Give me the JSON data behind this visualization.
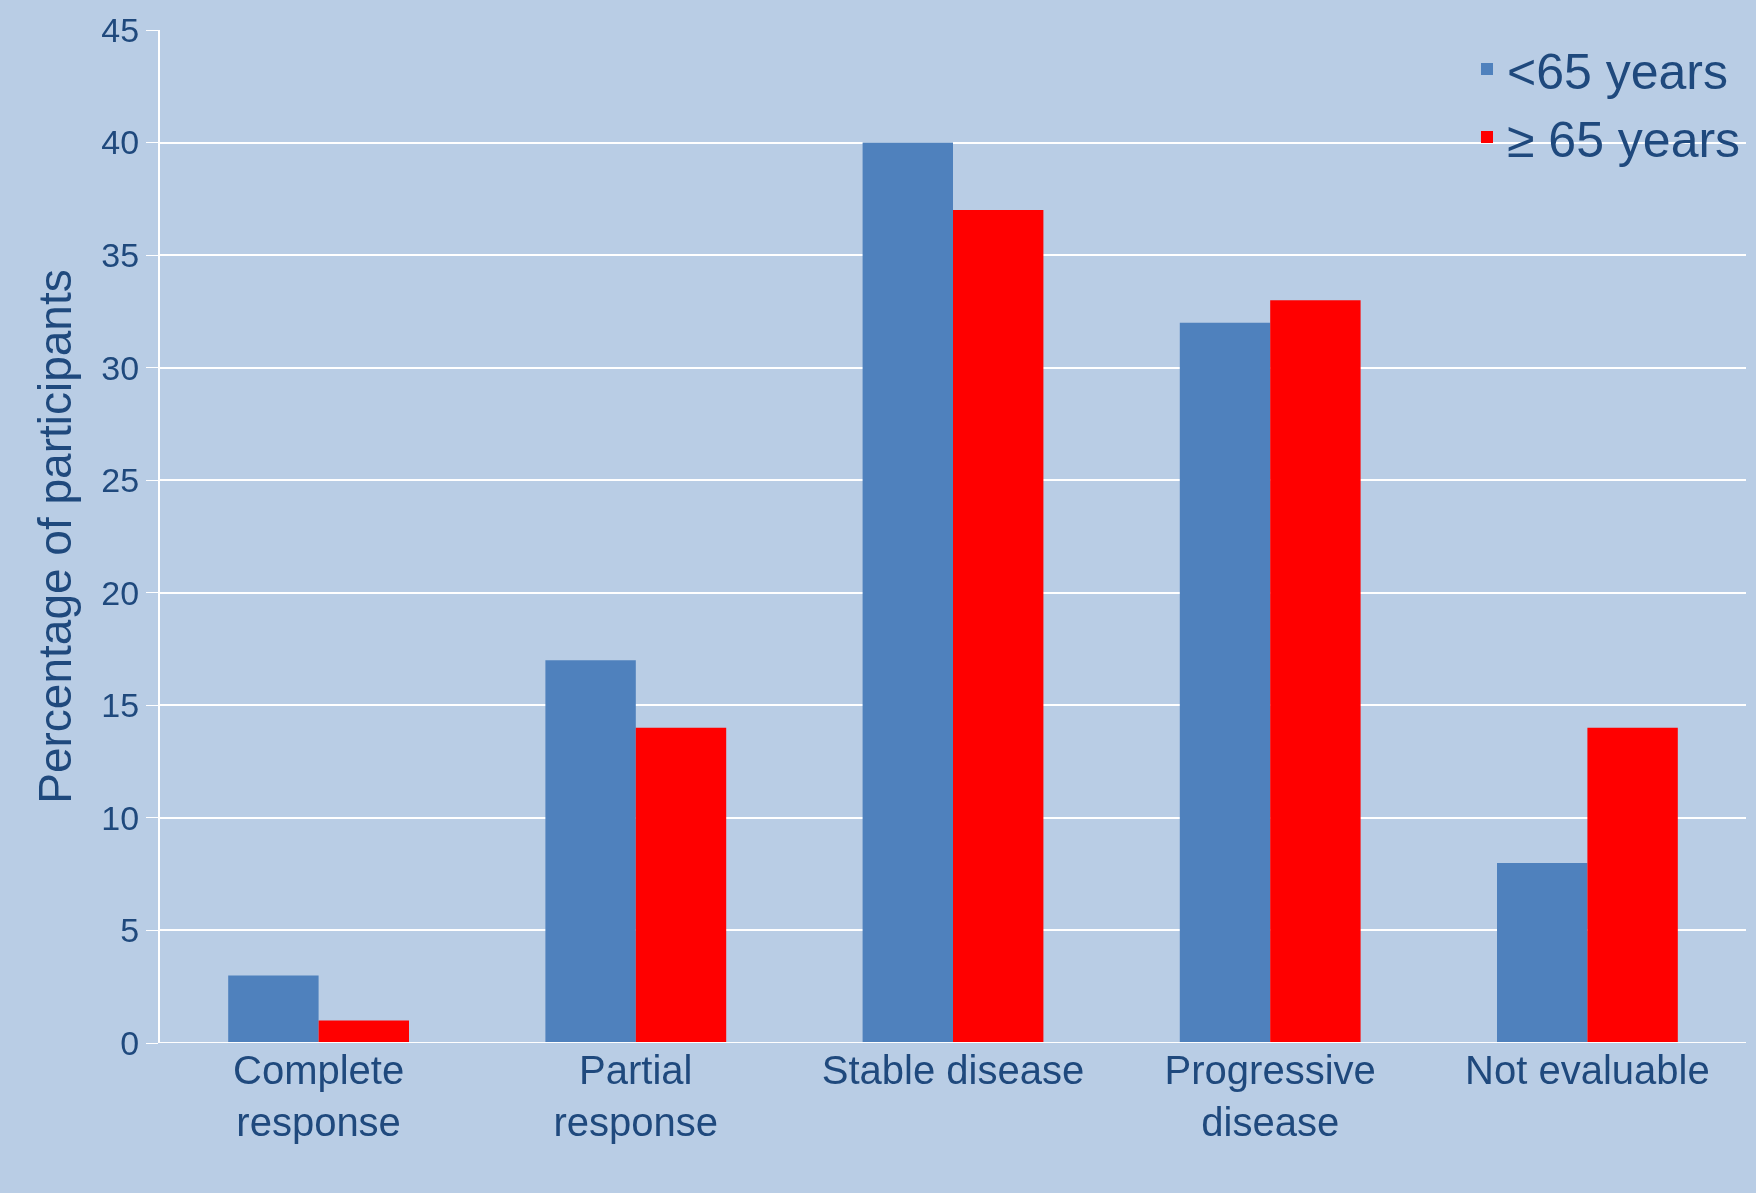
{
  "chart_data": {
    "type": "bar",
    "ylabel": "Percentage of participants",
    "categories": [
      "Complete\nresponse",
      "Partial\nresponse",
      "Stable disease",
      "Progressive\ndisease",
      "Not evaluable"
    ],
    "series": [
      {
        "name": "<65 years",
        "color": "#4f81bd",
        "values": [
          3,
          17,
          40,
          32,
          8
        ]
      },
      {
        "name": "≥ 65 years",
        "color": "#ff0000",
        "values": [
          1,
          14,
          37,
          33,
          14
        ]
      }
    ],
    "ylim": [
      0,
      45
    ],
    "yticks": [
      0,
      5,
      10,
      15,
      20,
      25,
      30,
      35,
      40,
      45
    ],
    "grid": "y",
    "legend": "top right"
  }
}
